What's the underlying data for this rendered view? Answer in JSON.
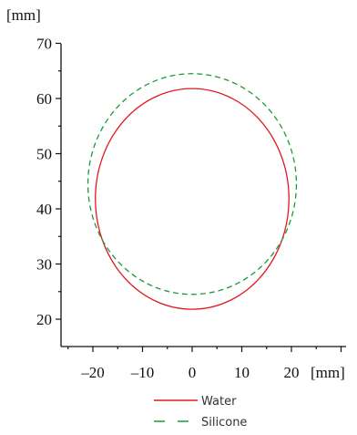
{
  "chart_data": {
    "type": "line",
    "title": "",
    "x_unit_label": "[mm]",
    "y_unit_label": "[mm]",
    "xlim": [
      -25,
      30
    ],
    "ylim": [
      15,
      70
    ],
    "x_ticks": [
      -20,
      -10,
      0,
      10,
      20
    ],
    "x_tick_labels": [
      "–20",
      "–10",
      "0",
      "10",
      "20"
    ],
    "y_ticks": [
      20,
      30,
      40,
      50,
      60,
      70
    ],
    "y_tick_labels": [
      "20",
      "30",
      "40",
      "50",
      "60",
      "70"
    ],
    "grid": false,
    "legend_position": "bottom-center",
    "series": [
      {
        "name": "Water",
        "color": "#e2191f",
        "dash": "solid",
        "shape": "ellipse",
        "center": [
          0,
          41.8
        ],
        "radius_x": 19.5,
        "radius_y": 20.0
      },
      {
        "name": "Silicone",
        "color": "#1a9a3c",
        "dash": "dashed",
        "shape": "ellipse",
        "center": [
          0,
          44.5
        ],
        "radius_x": 21.0,
        "radius_y": 20.0
      }
    ]
  }
}
